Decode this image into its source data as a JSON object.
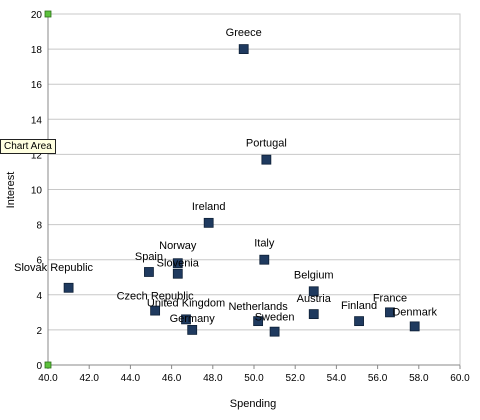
{
  "tooltip": "Chart Area",
  "chart_data": {
    "type": "scatter",
    "xlabel": "Spending",
    "ylabel": "Interest",
    "xlim": [
      40,
      60
    ],
    "ylim": [
      0,
      20
    ],
    "x_ticks": [
      "40.0",
      "42.0",
      "44.0",
      "46.0",
      "48.0",
      "50.0",
      "52.0",
      "54.0",
      "56.0",
      "58.0",
      "60.0"
    ],
    "y_ticks": [
      "0",
      "2",
      "4",
      "6",
      "8",
      "10",
      "12",
      "14",
      "16",
      "18",
      "20"
    ],
    "grid": "horizontal",
    "marker_color": "#1f3a5f",
    "handle_color": "#5cc13c",
    "points": [
      {
        "label": "Greece",
        "x": 49.5,
        "y": 18.0
      },
      {
        "label": "Portugal",
        "x": 50.6,
        "y": 11.7
      },
      {
        "label": "Ireland",
        "x": 47.8,
        "y": 8.1
      },
      {
        "label": "Italy",
        "x": 50.5,
        "y": 6.0
      },
      {
        "label": "Spain",
        "x": 44.9,
        "y": 5.3
      },
      {
        "label": "Norway",
        "x": 46.3,
        "y": 5.8
      },
      {
        "label": "Slovenia",
        "x": 46.3,
        "y": 5.2
      },
      {
        "label": "Slovak Republic",
        "x": 41.0,
        "y": 4.4
      },
      {
        "label": "Belgium",
        "x": 52.9,
        "y": 4.2
      },
      {
        "label": "Czech Republic",
        "x": 45.2,
        "y": 3.1
      },
      {
        "label": "United Kingdom",
        "x": 46.7,
        "y": 2.6
      },
      {
        "label": "Germany",
        "x": 47.0,
        "y": 2.0
      },
      {
        "label": "Netherlands",
        "x": 50.2,
        "y": 2.5
      },
      {
        "label": "Sweden",
        "x": 51.0,
        "y": 1.9
      },
      {
        "label": "Austria",
        "x": 52.9,
        "y": 2.9
      },
      {
        "label": "Finland",
        "x": 55.1,
        "y": 2.5
      },
      {
        "label": "France",
        "x": 56.6,
        "y": 3.0
      },
      {
        "label": "Denmark",
        "x": 57.8,
        "y": 2.2
      }
    ]
  }
}
